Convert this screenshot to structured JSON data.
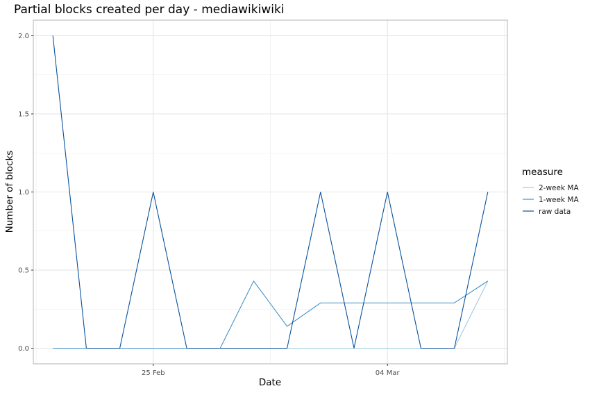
{
  "chart_data": {
    "type": "line",
    "title": "Partial blocks created per day - mediawikiwiki",
    "xlabel": "Date",
    "ylabel": "Number of blocks",
    "x": [
      "2019-02-22",
      "2019-02-23",
      "2019-02-24",
      "2019-02-25",
      "2019-02-26",
      "2019-02-27",
      "2019-02-28",
      "2019-03-01",
      "2019-03-02",
      "2019-03-03",
      "2019-03-04",
      "2019-03-05",
      "2019-03-06",
      "2019-03-07"
    ],
    "x_ticks": [
      {
        "date": "2019-02-25",
        "label": "25 Feb"
      },
      {
        "date": "2019-03-04",
        "label": "04 Mar"
      }
    ],
    "y_ticks": [
      "0.0",
      "0.5",
      "1.0",
      "1.5",
      "2.0"
    ],
    "ylim": [
      -0.1,
      2.1
    ],
    "grid": true,
    "legend": {
      "title": "measure",
      "position": "right"
    },
    "series": [
      {
        "name": "2-week MA",
        "color": "#9ecae1",
        "values": [
          0,
          0,
          0,
          0,
          0,
          0,
          0,
          0,
          0,
          0,
          0,
          0,
          0,
          0.43
        ]
      },
      {
        "name": "1-week MA",
        "color": "#4292c6",
        "values": [
          0,
          0,
          0,
          0,
          0,
          0,
          0.43,
          0.14,
          0.29,
          0.29,
          0.29,
          0.29,
          0.29,
          0.43
        ]
      },
      {
        "name": "raw data",
        "color": "#08519c",
        "values": [
          2,
          0,
          0,
          1,
          0,
          0,
          0,
          0,
          1,
          0,
          1,
          0,
          0,
          1
        ]
      }
    ]
  }
}
